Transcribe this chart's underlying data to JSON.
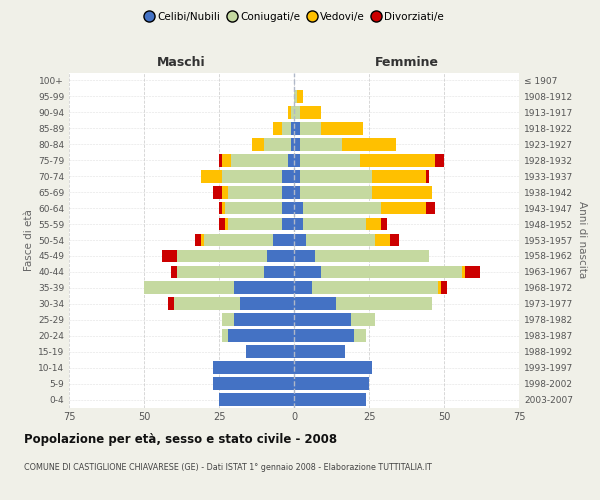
{
  "age_groups": [
    "0-4",
    "5-9",
    "10-14",
    "15-19",
    "20-24",
    "25-29",
    "30-34",
    "35-39",
    "40-44",
    "45-49",
    "50-54",
    "55-59",
    "60-64",
    "65-69",
    "70-74",
    "75-79",
    "80-84",
    "85-89",
    "90-94",
    "95-99",
    "100+"
  ],
  "birth_years": [
    "2003-2007",
    "1998-2002",
    "1993-1997",
    "1988-1992",
    "1983-1987",
    "1978-1982",
    "1973-1977",
    "1968-1972",
    "1963-1967",
    "1958-1962",
    "1953-1957",
    "1948-1952",
    "1943-1947",
    "1938-1942",
    "1933-1937",
    "1928-1932",
    "1923-1927",
    "1918-1922",
    "1913-1917",
    "1908-1912",
    "≤ 1907"
  ],
  "colors": {
    "celibe": "#4472c4",
    "coniugato": "#c5d9a0",
    "vedovo": "#ffc000",
    "divorziato": "#cc0000"
  },
  "maschi": {
    "celibe": [
      25,
      27,
      27,
      16,
      22,
      20,
      18,
      20,
      10,
      9,
      7,
      4,
      4,
      4,
      4,
      2,
      1,
      1,
      0,
      0,
      0
    ],
    "coniugato": [
      0,
      0,
      0,
      0,
      2,
      4,
      22,
      30,
      29,
      30,
      23,
      18,
      19,
      18,
      20,
      19,
      9,
      3,
      1,
      0,
      0
    ],
    "vedovo": [
      0,
      0,
      0,
      0,
      0,
      0,
      0,
      0,
      0,
      0,
      1,
      1,
      1,
      2,
      7,
      3,
      4,
      3,
      1,
      0,
      0
    ],
    "divorziato": [
      0,
      0,
      0,
      0,
      0,
      0,
      2,
      0,
      2,
      5,
      2,
      2,
      1,
      3,
      0,
      1,
      0,
      0,
      0,
      0,
      0
    ]
  },
  "femmine": {
    "nubile": [
      24,
      25,
      26,
      17,
      20,
      19,
      14,
      6,
      9,
      7,
      4,
      3,
      3,
      2,
      2,
      2,
      2,
      2,
      0,
      0,
      0
    ],
    "coniugata": [
      0,
      0,
      0,
      0,
      4,
      8,
      32,
      42,
      47,
      38,
      23,
      21,
      26,
      24,
      24,
      20,
      14,
      7,
      2,
      1,
      0
    ],
    "vedova": [
      0,
      0,
      0,
      0,
      0,
      0,
      0,
      1,
      1,
      0,
      5,
      5,
      15,
      20,
      18,
      25,
      18,
      14,
      7,
      2,
      0
    ],
    "divorziata": [
      0,
      0,
      0,
      0,
      0,
      0,
      0,
      2,
      5,
      0,
      3,
      2,
      3,
      0,
      1,
      3,
      0,
      0,
      0,
      0,
      0
    ]
  },
  "xlim": 75,
  "title": "Popolazione per età, sesso e stato civile - 2008",
  "subtitle": "COMUNE DI CASTIGLIONE CHIAVARESE (GE) - Dati ISTAT 1° gennaio 2008 - Elaborazione TUTTITALIA.IT",
  "xlabel_left": "Maschi",
  "xlabel_right": "Femmine",
  "ylabel_left": "Fasce di età",
  "ylabel_right": "Anni di nascita",
  "legend_labels": [
    "Celibi/Nubili",
    "Coniugati/e",
    "Vedovi/e",
    "Divorziati/e"
  ],
  "bg_color": "#f0f0e8",
  "plot_bg": "#ffffff",
  "grid_color": "#cccccc"
}
